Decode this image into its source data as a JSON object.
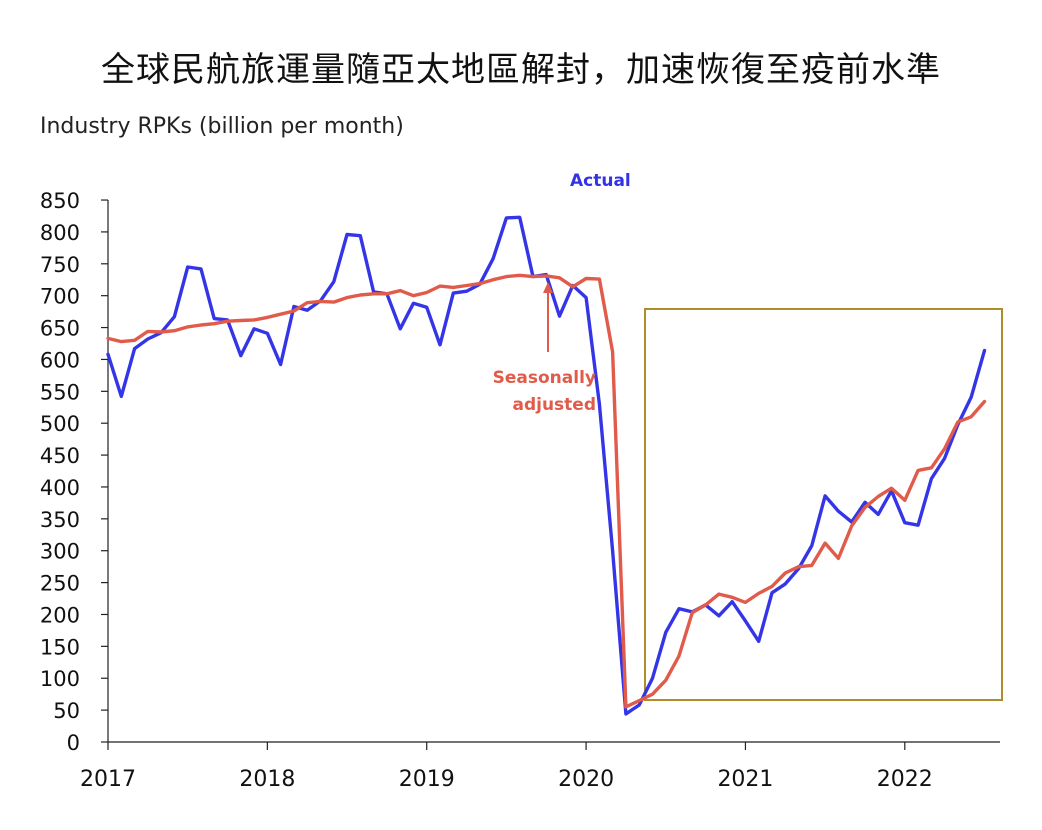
{
  "chart_data": {
    "type": "line",
    "title": "全球民航旅運量隨亞太地區解封，加速恢復至疫前水準",
    "ylabel": "Industry RPKs (billion per month)",
    "xlabel": "",
    "ylim": [
      0,
      850
    ],
    "yticks": [
      0,
      50,
      100,
      150,
      200,
      250,
      300,
      350,
      400,
      450,
      500,
      550,
      600,
      650,
      700,
      750,
      800,
      850
    ],
    "x_tick_labels": [
      "2017",
      "2018",
      "2019",
      "2020",
      "2021",
      "2022"
    ],
    "x_start": 2017,
    "months_count": 67,
    "series": [
      {
        "name": "Actual",
        "color": "#3535e8",
        "values": [
          608,
          542,
          617,
          632,
          642,
          667,
          745,
          742,
          664,
          662,
          606,
          648,
          641,
          592,
          683,
          677,
          692,
          722,
          796,
          794,
          706,
          703,
          648,
          688,
          682,
          623,
          704,
          707,
          718,
          758,
          822,
          823,
          730,
          733,
          668,
          716,
          697,
          530,
          300,
          44,
          58,
          100,
          172,
          209,
          204,
          215,
          198,
          220,
          190,
          158,
          234,
          248,
          272,
          308,
          386,
          362,
          345,
          376,
          357,
          394,
          344,
          340,
          413,
          445,
          498,
          541,
          614
        ]
      },
      {
        "name": "Seasonally adjusted",
        "color": "#e15b4a",
        "values": [
          633,
          628,
          630,
          644,
          643,
          645,
          651,
          654,
          656,
          660,
          661,
          662,
          666,
          671,
          676,
          689,
          691,
          690,
          697,
          701,
          703,
          703,
          708,
          700,
          705,
          715,
          713,
          716,
          719,
          725,
          730,
          732,
          730,
          731,
          728,
          714,
          727,
          726,
          612,
          55,
          65,
          75,
          97,
          135,
          203,
          215,
          232,
          227,
          219,
          233,
          244,
          265,
          275,
          277,
          312,
          288,
          339,
          368,
          385,
          398,
          379,
          426,
          430,
          460,
          502,
          510,
          534
        ]
      }
    ],
    "annotations": {
      "actual_label": "Actual",
      "sa_label_line1": "Seasonally",
      "sa_label_line2": "adjusted"
    }
  }
}
